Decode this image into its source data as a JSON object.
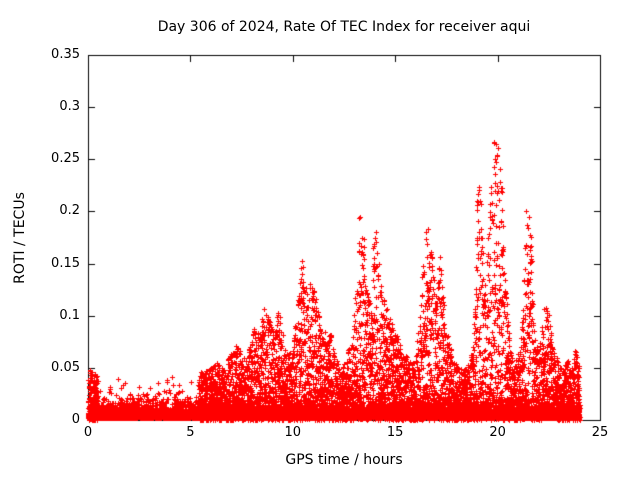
{
  "colors": {
    "background": "#ffffff",
    "axis": "#000000",
    "text": "#000000",
    "marker": "#ff0000"
  },
  "chart_data": {
    "type": "scatter",
    "title": "Day 306 of 2024, Rate Of TEC Index for receiver aqui",
    "xlabel": "GPS time / hours",
    "ylabel": "ROTI / TECUs",
    "xlim": [
      0,
      25
    ],
    "ylim": [
      0,
      0.35
    ],
    "xticks": [
      0,
      5,
      10,
      15,
      20,
      25
    ],
    "yticks": [
      0,
      0.05,
      0.1,
      0.15,
      0.2,
      0.25,
      0.3,
      0.35
    ],
    "xtick_labels": [
      "0",
      "5",
      "10",
      "15",
      "20",
      "25"
    ],
    "ytick_labels": [
      "0",
      "0.05",
      "0.1",
      "0.15",
      "0.2",
      "0.25",
      "0.3",
      "0.35"
    ],
    "grid": false,
    "legend_position": "none",
    "marker": "plus",
    "marker_color": "#ff0000",
    "data_time_span_hours": [
      0,
      24
    ],
    "series": [
      {
        "name": "ROTI",
        "description": "Dense all-day baseline band of ROTI values between 0 and ~0.04 TECU with vertical activity spikes; peak 0.30 near 19.9 h, 0.23 near 19.0 h, 0.21 near 21.4 h, 0.20 near 13.3 h and 16.5 h, 0.19 near 14.0 h, 0.155 near 10.5 h.",
        "synthesis": {
          "seed": 306,
          "dt_hours": 0.006,
          "base_points_per_step": 2,
          "base_offset": 0.0015,
          "base_exp_mean": 0.0055,
          "spike_threshold": 0.042,
          "spike_points_per_step": 2,
          "spike_gate": 0.85,
          "spike_power": 1.4,
          "envelope": [
            [
              0,
              0.05
            ],
            [
              0.3,
              0.045
            ],
            [
              0.6,
              0.04
            ],
            [
              1,
              0.035
            ],
            [
              1.5,
              0.038
            ],
            [
              2,
              0.034
            ],
            [
              2.5,
              0.03
            ],
            [
              3,
              0.036
            ],
            [
              3.5,
              0.032
            ],
            [
              4,
              0.03
            ],
            [
              4.5,
              0.034
            ],
            [
              5,
              0.032
            ],
            [
              5.5,
              0.045
            ],
            [
              6,
              0.05
            ],
            [
              6.3,
              0.055
            ],
            [
              6.6,
              0.05
            ],
            [
              7,
              0.065
            ],
            [
              7.3,
              0.075
            ],
            [
              7.6,
              0.06
            ],
            [
              7.9,
              0.07
            ],
            [
              8.1,
              0.09
            ],
            [
              8.4,
              0.08
            ],
            [
              8.6,
              0.11
            ],
            [
              8.9,
              0.095
            ],
            [
              9.1,
              0.08
            ],
            [
              9.3,
              0.11
            ],
            [
              9.6,
              0.075
            ],
            [
              9.9,
              0.065
            ],
            [
              10.1,
              0.09
            ],
            [
              10.35,
              0.145
            ],
            [
              10.5,
              0.155
            ],
            [
              10.7,
              0.12
            ],
            [
              10.9,
              0.135
            ],
            [
              11.1,
              0.125
            ],
            [
              11.3,
              0.1
            ],
            [
              11.5,
              0.085
            ],
            [
              11.8,
              0.09
            ],
            [
              12,
              0.065
            ],
            [
              12.3,
              0.05
            ],
            [
              12.6,
              0.06
            ],
            [
              12.9,
              0.08
            ],
            [
              13.1,
              0.13
            ],
            [
              13.25,
              0.2
            ],
            [
              13.45,
              0.19
            ],
            [
              13.6,
              0.13
            ],
            [
              13.8,
              0.11
            ],
            [
              14,
              0.19
            ],
            [
              14.15,
              0.17
            ],
            [
              14.4,
              0.12
            ],
            [
              14.7,
              0.1
            ],
            [
              15,
              0.085
            ],
            [
              15.3,
              0.07
            ],
            [
              15.6,
              0.06
            ],
            [
              15.9,
              0.055
            ],
            [
              16.1,
              0.08
            ],
            [
              16.35,
              0.15
            ],
            [
              16.55,
              0.205
            ],
            [
              16.75,
              0.17
            ],
            [
              16.95,
              0.12
            ],
            [
              17.2,
              0.16
            ],
            [
              17.45,
              0.09
            ],
            [
              17.7,
              0.07
            ],
            [
              18,
              0.055
            ],
            [
              18.3,
              0.048
            ],
            [
              18.6,
              0.055
            ],
            [
              18.85,
              0.09
            ],
            [
              19,
              0.23
            ],
            [
              19.15,
              0.22
            ],
            [
              19.35,
              0.12
            ],
            [
              19.55,
              0.18
            ],
            [
              19.75,
              0.26
            ],
            [
              19.9,
              0.3
            ],
            [
              20.05,
              0.26
            ],
            [
              20.2,
              0.23
            ],
            [
              20.4,
              0.12
            ],
            [
              20.6,
              0.07
            ],
            [
              20.8,
              0.055
            ],
            [
              21,
              0.065
            ],
            [
              21.2,
              0.09
            ],
            [
              21.4,
              0.21
            ],
            [
              21.6,
              0.19
            ],
            [
              21.8,
              0.09
            ],
            [
              22,
              0.065
            ],
            [
              22.2,
              0.1
            ],
            [
              22.4,
              0.12
            ],
            [
              22.6,
              0.085
            ],
            [
              22.8,
              0.065
            ],
            [
              23,
              0.055
            ],
            [
              23.2,
              0.048
            ],
            [
              23.4,
              0.06
            ],
            [
              23.6,
              0.05
            ],
            [
              23.8,
              0.07
            ],
            [
              24,
              0.05
            ]
          ]
        }
      }
    ]
  }
}
